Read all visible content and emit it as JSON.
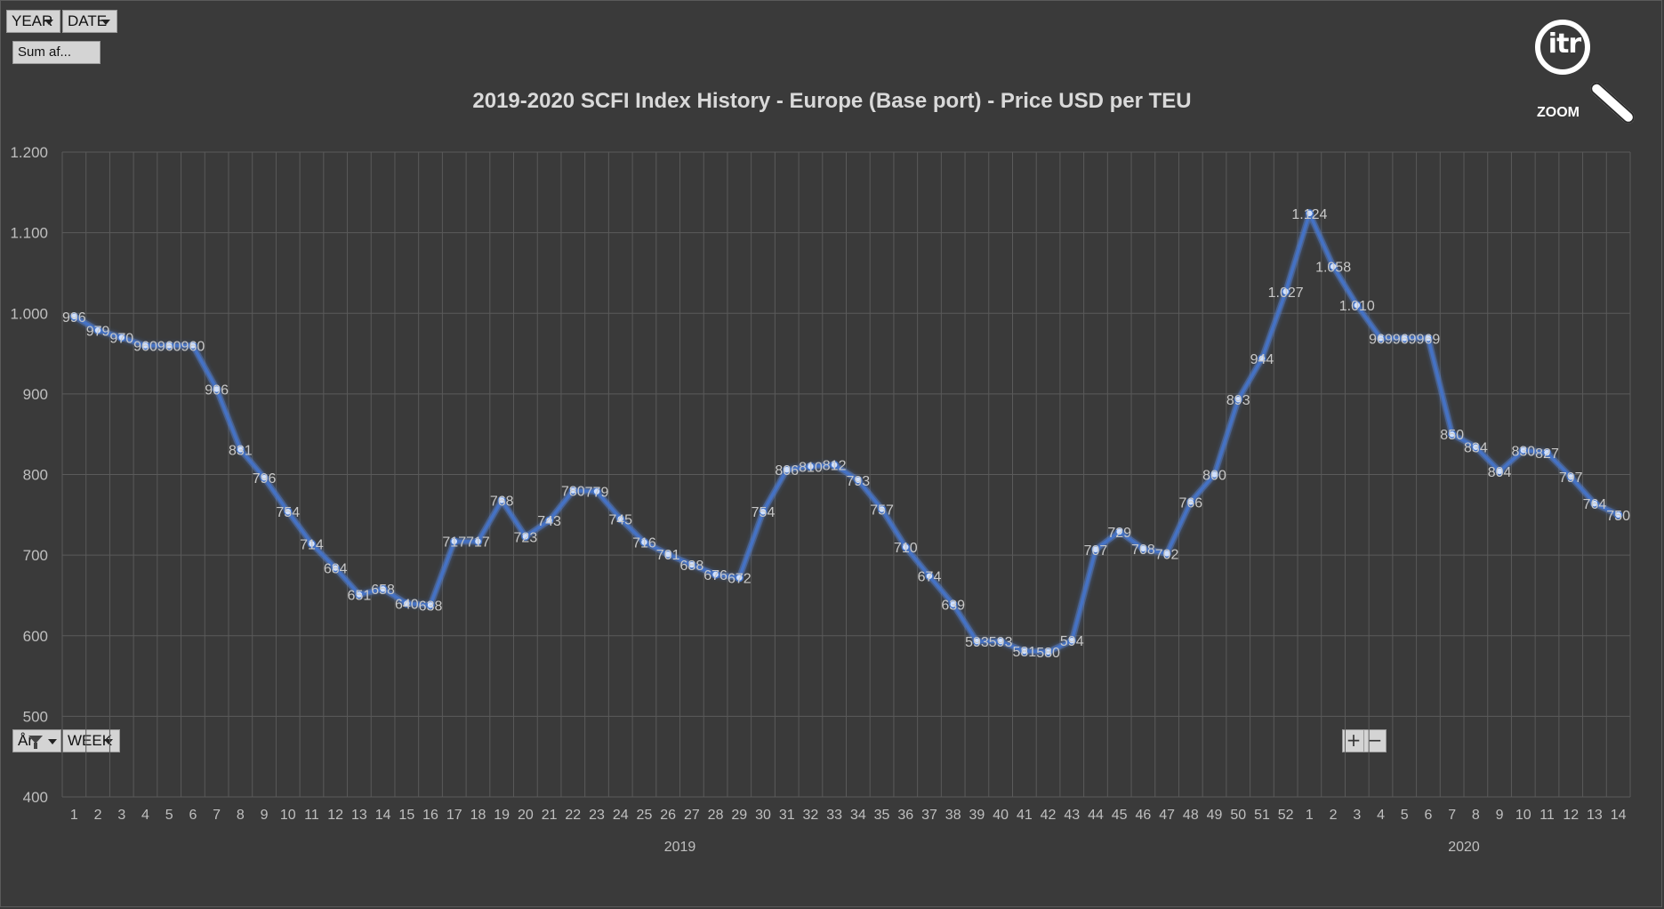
{
  "toolbar": {
    "year_label": "YEAR",
    "date_label": "DATE",
    "value_label": "Sum af...",
    "ar_label": "År",
    "week_label": "WEEK",
    "zoom_in_symbol": "+",
    "zoom_out_symbol": "−"
  },
  "logo": {
    "text": "itr",
    "sub": "ZOOM"
  },
  "colors": {
    "background": "#3a3a3a",
    "line": "#4472c4",
    "grid": "#5a5a5a",
    "text": "#bfbfbf",
    "title": "#d9d9d9"
  },
  "chart_data": {
    "type": "line",
    "title": "2019-2020 SCFI Index History - Europe (Base port) - Price USD per TEU",
    "xlabel": "",
    "ylabel": "",
    "ylim": [
      400,
      1200
    ],
    "yticks": [
      "400",
      "500",
      "600",
      "700",
      "800",
      "900",
      "1.000",
      "1.100",
      "1.200"
    ],
    "grid": true,
    "groups": [
      {
        "name": "2019",
        "start": 0,
        "end": 51
      },
      {
        "name": "2020",
        "start": 52,
        "end": 65
      }
    ],
    "categories": [
      "1",
      "2",
      "3",
      "4",
      "5",
      "6",
      "7",
      "8",
      "9",
      "10",
      "11",
      "12",
      "13",
      "14",
      "15",
      "16",
      "17",
      "18",
      "19",
      "20",
      "21",
      "22",
      "23",
      "24",
      "25",
      "26",
      "27",
      "28",
      "29",
      "30",
      "31",
      "32",
      "33",
      "34",
      "35",
      "36",
      "37",
      "38",
      "39",
      "40",
      "41",
      "42",
      "43",
      "44",
      "45",
      "46",
      "47",
      "48",
      "49",
      "50",
      "51",
      "52",
      "1",
      "2",
      "3",
      "4",
      "5",
      "6",
      "7",
      "8",
      "9",
      "10",
      "11",
      "12",
      "13",
      "14"
    ],
    "values": [
      996,
      979,
      970,
      960,
      960,
      960,
      906,
      831,
      796,
      754,
      714,
      684,
      651,
      658,
      640,
      638,
      717,
      717,
      768,
      723,
      743,
      780,
      779,
      745,
      716,
      701,
      688,
      676,
      672,
      754,
      806,
      810,
      812,
      793,
      757,
      710,
      674,
      639,
      593,
      593,
      581,
      580,
      594,
      707,
      729,
      708,
      702,
      766,
      800,
      893,
      944,
      1027,
      1124,
      1058,
      1010,
      969,
      969,
      969,
      850,
      834,
      804,
      830,
      827,
      797,
      764,
      750
    ],
    "labels": [
      "996",
      "979",
      "970",
      "960",
      "960",
      "960",
      "906",
      "831",
      "796",
      "754",
      "714",
      "684",
      "651",
      "658",
      "640",
      "638",
      "717",
      "717",
      "768",
      "723",
      "743",
      "780",
      "779",
      "745",
      "716",
      "701",
      "688",
      "676",
      "672",
      "754",
      "806",
      "810",
      "812",
      "793",
      "757",
      "710",
      "674",
      "639",
      "593",
      "593",
      "581",
      "580",
      "594",
      "707",
      "729",
      "708",
      "702",
      "766",
      "800",
      "893",
      "944",
      "1.027",
      "1.124",
      "1.058",
      "1.010",
      "969",
      "969",
      "969",
      "850",
      "834",
      "804",
      "830",
      "827",
      "797",
      "764",
      "750"
    ]
  }
}
